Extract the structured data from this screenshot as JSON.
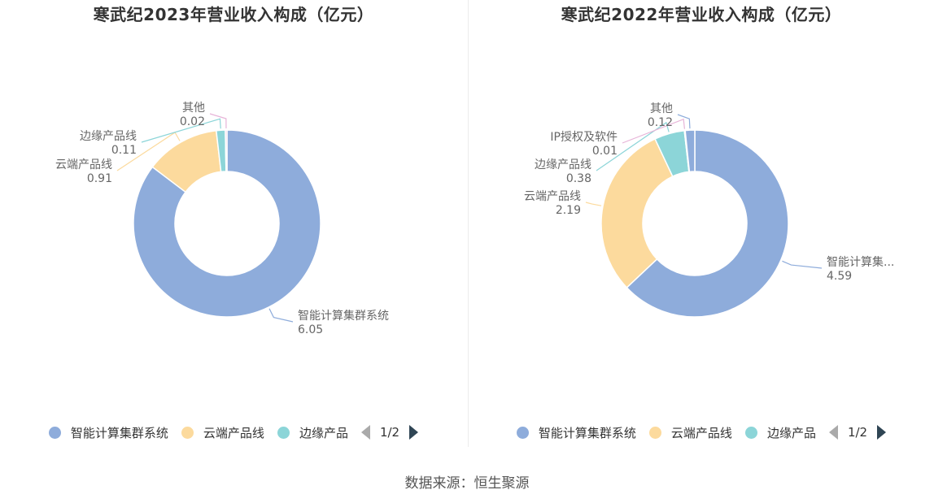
{
  "colors": [
    "#8eacdb",
    "#fcda9d",
    "#8cd5d8",
    "#e7b4d8"
  ],
  "chart_data": [
    {
      "type": "pie",
      "title": "寒武纪2023年营业收入构成（亿元）",
      "slices": [
        {
          "label": "智能计算集群系统",
          "value": 6.05
        },
        {
          "label": "云端产品线",
          "value": 0.91
        },
        {
          "label": "边缘产品线",
          "value": 0.11
        },
        {
          "label": "其他",
          "value": 0.02
        }
      ],
      "legend": {
        "items": [
          "智能计算集群系统",
          "云端产品线",
          "边缘产品"
        ],
        "page": "1/2"
      }
    },
    {
      "type": "pie",
      "title": "寒武纪2022年营业收入构成（亿元）",
      "slices": [
        {
          "label": "智能计算集...",
          "value": 4.59
        },
        {
          "label": "云端产品线",
          "value": 2.19
        },
        {
          "label": "边缘产品线",
          "value": 0.38
        },
        {
          "label": "IP授权及软件",
          "value": 0.01
        },
        {
          "label": "其他",
          "value": 0.12
        }
      ],
      "legend": {
        "items": [
          "智能计算集群系统",
          "云端产品线",
          "边缘产品"
        ],
        "page": "1/2"
      }
    }
  ],
  "source": "数据来源：恒生聚源"
}
